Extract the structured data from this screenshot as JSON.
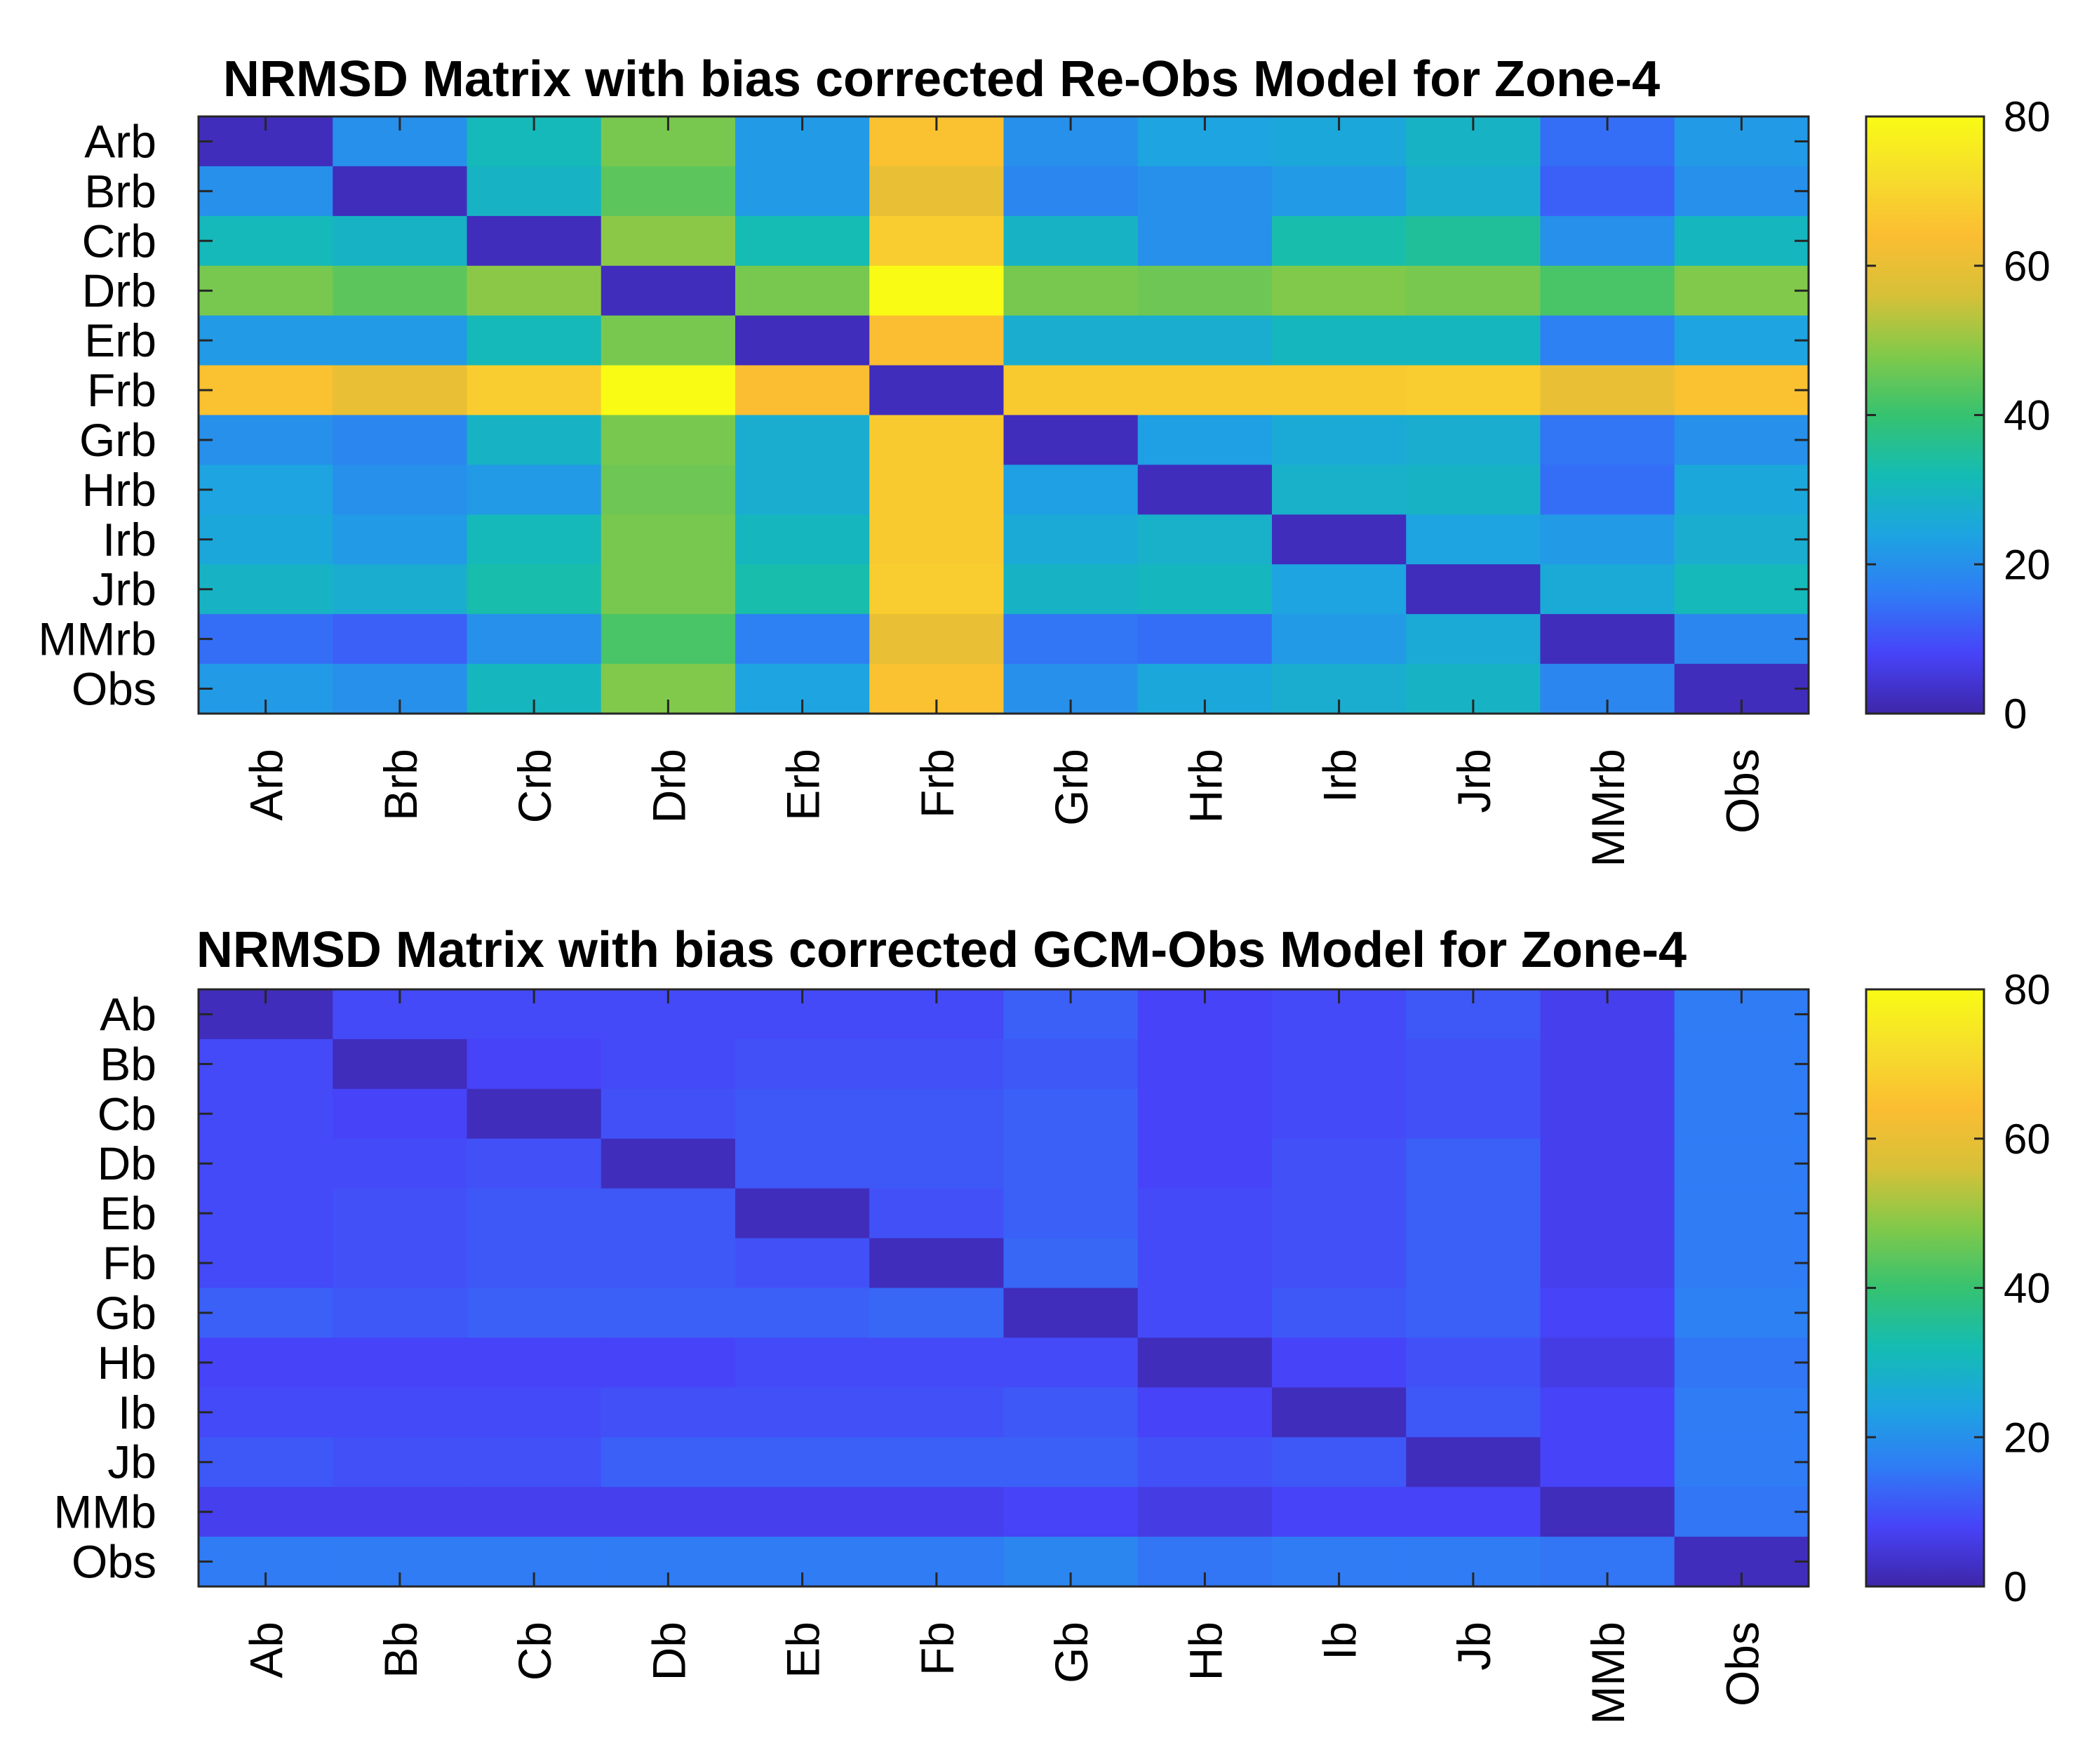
{
  "colormap": [
    "#3e26a8",
    "#4743f8",
    "#2f7cf5",
    "#1da4e1",
    "#14bcb3",
    "#36c270",
    "#81c94a",
    "#d6c138",
    "#fbbd32",
    "#f6dd2c",
    "#f9fb15"
  ],
  "chart_data": [
    {
      "type": "heatmap",
      "title": "NRMSD Matrix with bias corrected Re-Obs Model for Zone-4",
      "row_labels": [
        "Arb",
        "Brb",
        "Crb",
        "Drb",
        "Erb",
        "Frb",
        "Grb",
        "Hrb",
        "Irb",
        "Jrb",
        "MMrb",
        "Obs"
      ],
      "col_labels": [
        "Arb",
        "Brb",
        "Crb",
        "Drb",
        "Erb",
        "Frb",
        "Grb",
        "Hrb",
        "Irb",
        "Jrb",
        "MMrb",
        "Obs"
      ],
      "values": [
        [
          2,
          20,
          31,
          47,
          22,
          65,
          20,
          24,
          25,
          29,
          14,
          22
        ],
        [
          20,
          2,
          29,
          44,
          22,
          60,
          18,
          20,
          22,
          27,
          12,
          20
        ],
        [
          31,
          29,
          2,
          49,
          32,
          68,
          29,
          20,
          33,
          35,
          20,
          30
        ],
        [
          47,
          44,
          49,
          2,
          47,
          80,
          47,
          46,
          48,
          47,
          42,
          48
        ],
        [
          22,
          22,
          31,
          47,
          2,
          64,
          27,
          27,
          30,
          30,
          17,
          24
        ],
        [
          65,
          60,
          68,
          80,
          64,
          2,
          67,
          67,
          67,
          68,
          60,
          65
        ],
        [
          20,
          18,
          29,
          47,
          27,
          67,
          2,
          23,
          26,
          27,
          15,
          20
        ],
        [
          24,
          20,
          22,
          46,
          27,
          67,
          23,
          2,
          28,
          29,
          14,
          25
        ],
        [
          25,
          22,
          31,
          47,
          30,
          67,
          26,
          28,
          2,
          24,
          22,
          27
        ],
        [
          29,
          27,
          33,
          47,
          33,
          68,
          29,
          30,
          24,
          2,
          26,
          31
        ],
        [
          14,
          12,
          20,
          42,
          17,
          60,
          15,
          14,
          22,
          26,
          2,
          18
        ],
        [
          22,
          20,
          30,
          48,
          24,
          65,
          20,
          25,
          27,
          29,
          18,
          2
        ]
      ],
      "colorbar": {
        "min": 0,
        "max": 80,
        "ticks": [
          0,
          20,
          40,
          60,
          80
        ]
      }
    },
    {
      "type": "heatmap",
      "title": "NRMSD Matrix with bias corrected GCM-Obs Model for Zone-4",
      "row_labels": [
        "Ab",
        "Bb",
        "Cb",
        "Db",
        "Eb",
        "Fb",
        "Gb",
        "Hb",
        "Ib",
        "Jb",
        "MMb",
        "Obs"
      ],
      "col_labels": [
        "Ab",
        "Bb",
        "Cb",
        "Db",
        "Eb",
        "Fb",
        "Gb",
        "Hb",
        "Ib",
        "Jb",
        "MMb",
        "Obs"
      ],
      "values": [
        [
          2,
          9,
          9,
          9,
          9,
          9,
          12,
          8,
          9,
          11,
          7,
          16
        ],
        [
          9,
          2,
          8,
          9,
          10,
          10,
          11,
          8,
          9,
          10,
          7,
          16
        ],
        [
          9,
          8,
          2,
          10,
          11,
          11,
          12,
          8,
          9,
          10,
          7,
          16
        ],
        [
          9,
          9,
          10,
          2,
          11,
          11,
          12,
          8,
          10,
          12,
          7,
          16
        ],
        [
          9,
          10,
          11,
          11,
          2,
          10,
          12,
          9,
          10,
          12,
          7,
          16
        ],
        [
          9,
          10,
          11,
          11,
          10,
          2,
          13,
          9,
          10,
          12,
          7,
          16
        ],
        [
          12,
          11,
          12,
          12,
          12,
          13,
          2,
          9,
          11,
          12,
          8,
          17
        ],
        [
          8,
          8,
          8,
          8,
          9,
          9,
          9,
          2,
          8,
          10,
          6,
          15
        ],
        [
          9,
          9,
          9,
          10,
          10,
          10,
          11,
          8,
          2,
          11,
          8,
          16
        ],
        [
          11,
          10,
          10,
          12,
          12,
          12,
          12,
          10,
          11,
          2,
          8,
          16
        ],
        [
          7,
          7,
          7,
          7,
          7,
          7,
          8,
          6,
          8,
          8,
          2,
          15
        ],
        [
          16,
          16,
          16,
          16,
          16,
          16,
          18,
          15,
          16,
          16,
          15,
          2
        ]
      ],
      "colorbar": {
        "min": 0,
        "max": 80,
        "ticks": [
          0,
          20,
          40,
          60,
          80
        ]
      }
    }
  ]
}
